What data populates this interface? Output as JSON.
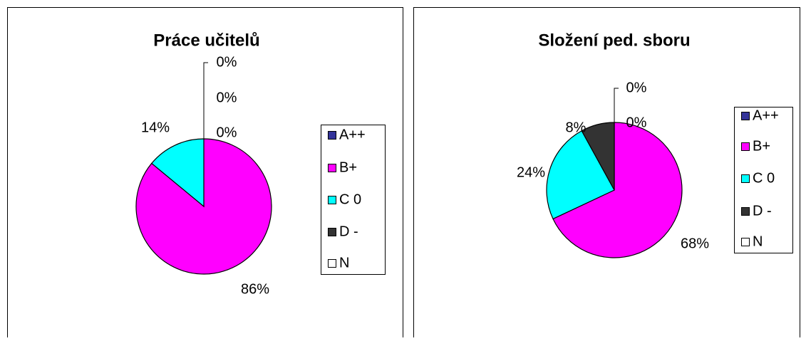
{
  "chart_data": [
    {
      "type": "pie",
      "title": "Práce učitelů",
      "categories": [
        "A++",
        "B+",
        "C 0",
        "D -",
        "N"
      ],
      "values": [
        0,
        86,
        14,
        0,
        0
      ],
      "value_labels": [
        "0%",
        "86%",
        "14%",
        "0%",
        "0%"
      ],
      "colors": [
        "#333399",
        "#ff00ff",
        "#00ffff",
        "#333333",
        "#ffffff"
      ],
      "legend": "right"
    },
    {
      "type": "pie",
      "title": "Složení ped. sboru",
      "categories": [
        "A++",
        "B+",
        "C 0",
        "D -",
        "N"
      ],
      "values": [
        0,
        68,
        24,
        8,
        0
      ],
      "value_labels": [
        "0%",
        "68%",
        "24%",
        "8%",
        "0%"
      ],
      "colors": [
        "#333399",
        "#ff00ff",
        "#00ffff",
        "#333333",
        "#ffffff"
      ],
      "legend": "right"
    }
  ]
}
